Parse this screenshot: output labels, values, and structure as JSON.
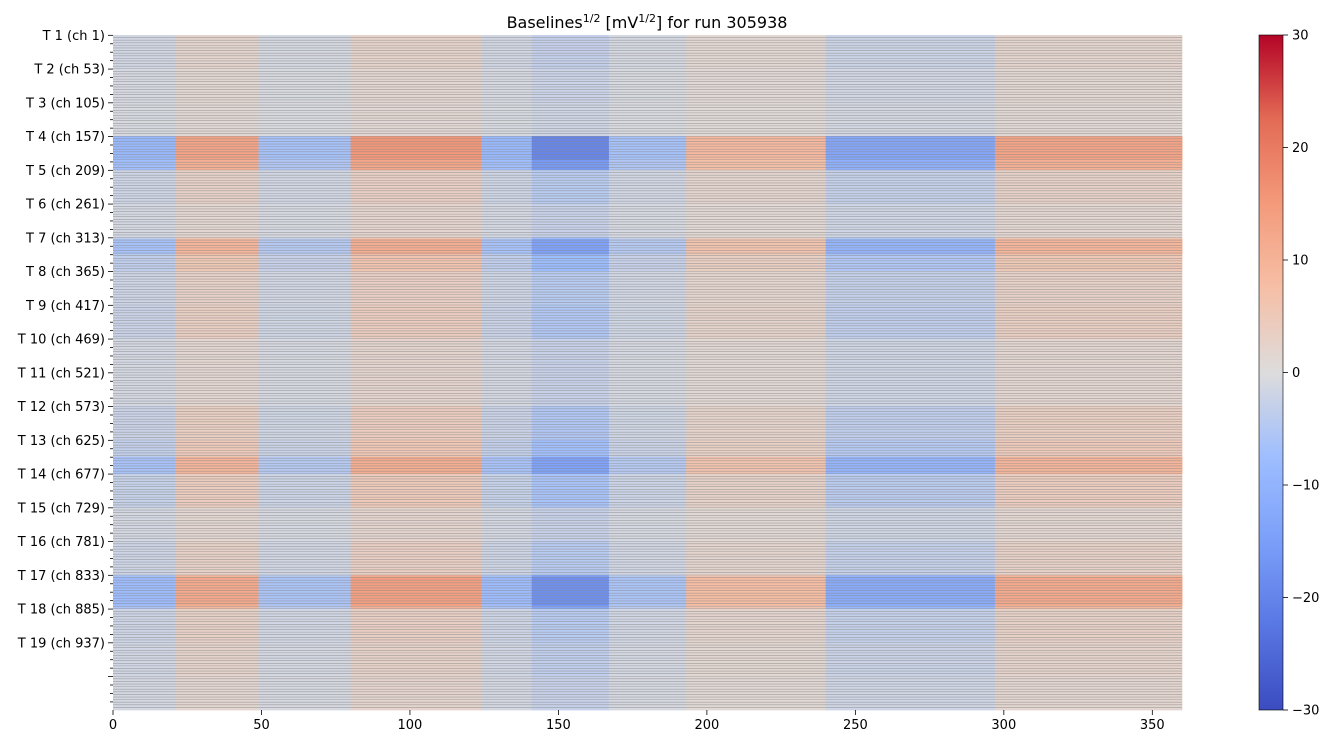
{
  "chart_data": {
    "type": "heatmap",
    "title": "Baselines",
    "title_sup1": "1/2",
    "title_mid": " [mV",
    "title_sup2": "1/2",
    "title_end": "] for run 305938",
    "x_range": [
      0,
      360
    ],
    "x_ticks": [
      0,
      50,
      100,
      150,
      200,
      250,
      300,
      350
    ],
    "n_rows": 1040,
    "channels_per_module": 52,
    "y_tick_labels": [
      "T 1 (ch 1)",
      "T 2 (ch 53)",
      "T 3 (ch 105)",
      "T 4 (ch 157)",
      "T 5 (ch 209)",
      "T 6 (ch 261)",
      "T 7 (ch 313)",
      "T 8 (ch 365)",
      "T 9 (ch 417)",
      "T 10 (ch 469)",
      "T 11 (ch 521)",
      "T 12 (ch 573)",
      "T 13 (ch 625)",
      "T 14 (ch 677)",
      "T 15 (ch 729)",
      "T 16 (ch 781)",
      "T 17 (ch 833)",
      "T 18 (ch 885)",
      "T 19 (ch 937)"
    ],
    "colorbar": {
      "min": -30,
      "max": 30,
      "ticks": [
        30,
        20,
        10,
        0,
        -10,
        -20,
        -30
      ],
      "colormap": "coolwarm"
    },
    "column_segments": [
      {
        "start": 0,
        "end": 21,
        "value": -4
      },
      {
        "start": 21,
        "end": 49,
        "value": 6
      },
      {
        "start": 49,
        "end": 80,
        "value": -3
      },
      {
        "start": 80,
        "end": 124,
        "value": 7
      },
      {
        "start": 124,
        "end": 141,
        "value": -4
      },
      {
        "start": 141,
        "end": 167,
        "value": -9
      },
      {
        "start": 167,
        "end": 193,
        "value": -3
      },
      {
        "start": 193,
        "end": 240,
        "value": 4
      },
      {
        "start": 240,
        "end": 297,
        "value": -6
      },
      {
        "start": 297,
        "end": 360,
        "value": 6
      }
    ],
    "module_strength": [
      0.35,
      0.25,
      0.2,
      1.8,
      0.5,
      0.3,
      0.9,
      0.5,
      0.6,
      0.3,
      0.3,
      0.6,
      0.8,
      0.7,
      0.3,
      0.5,
      1.5,
      0.5,
      0.4,
      0.3
    ],
    "highlight_bands": [
      {
        "module": 4,
        "row_from": 0.0,
        "row_to": 0.7,
        "gain": 2.2
      },
      {
        "module": 7,
        "row_from": 0.05,
        "row_to": 0.5,
        "gain": 1.6
      },
      {
        "module": 13,
        "row_from": 0.5,
        "row_to": 1.0,
        "gain": 1.6
      },
      {
        "module": 17,
        "row_from": 0.05,
        "row_to": 0.9,
        "gain": 2.0
      }
    ]
  }
}
